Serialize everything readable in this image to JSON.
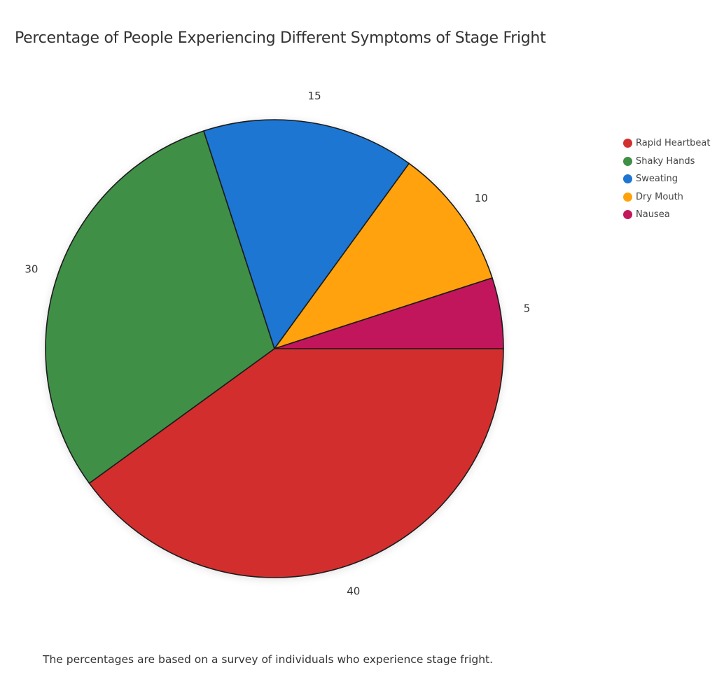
{
  "title": "Percentage of People Experiencing Different Symptoms of Stage Fright",
  "footnote": "The percentages are based on a survey of individuals who experience stage fright.",
  "legend": [
    {
      "label": "Rapid Heartbeat",
      "color": "#d32f2f"
    },
    {
      "label": "Shaky Hands",
      "color": "#3f8f47"
    },
    {
      "label": "Sweating",
      "color": "#1e76d2"
    },
    {
      "label": "Dry Mouth",
      "color": "#ffa20a"
    },
    {
      "label": "Nausea",
      "color": "#c2185b"
    }
  ],
  "slice_labels": [
    "40",
    "30",
    "15",
    "10",
    "5"
  ],
  "chart_data": {
    "type": "pie",
    "title": "Percentage of People Experiencing Different Symptoms of Stage Fright",
    "categories": [
      "Rapid Heartbeat",
      "Shaky Hands",
      "Sweating",
      "Dry Mouth",
      "Nausea"
    ],
    "values": [
      40,
      30,
      15,
      10,
      5
    ],
    "colors": [
      "#d32f2f",
      "#3f8f47",
      "#1e76d2",
      "#ffa20a",
      "#c2185b"
    ],
    "legend_position": "right",
    "annotation": "The percentages are based on a survey of individuals who experience stage fright."
  }
}
